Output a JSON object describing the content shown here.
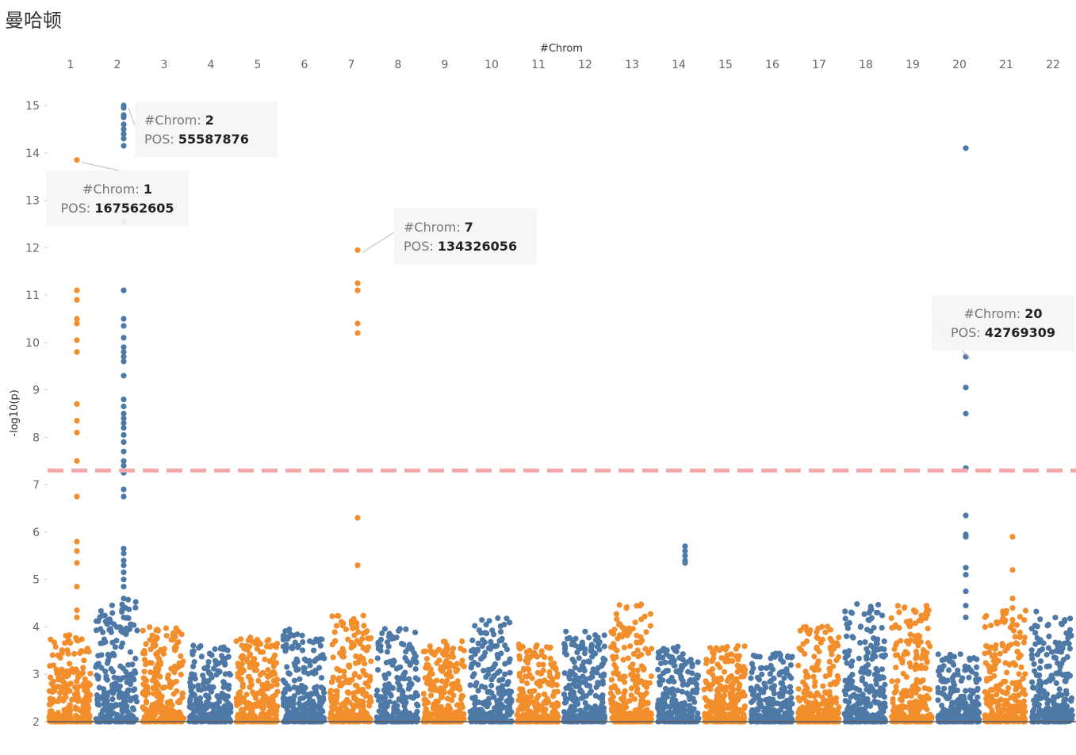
{
  "page": {
    "title": "曼哈顿"
  },
  "chart_data": {
    "type": "scatter",
    "title": "曼哈顿",
    "xlabel": "#Chrom",
    "ylabel": "-log10(p)",
    "categories": [
      "1",
      "2",
      "3",
      "4",
      "5",
      "6",
      "7",
      "8",
      "9",
      "10",
      "11",
      "12",
      "13",
      "14",
      "15",
      "16",
      "17",
      "18",
      "19",
      "20",
      "21",
      "22"
    ],
    "ylim": [
      2,
      15
    ],
    "yticks": [
      2,
      3,
      4,
      5,
      6,
      7,
      8,
      9,
      10,
      11,
      12,
      13,
      14,
      15
    ],
    "xaxis_position": "top",
    "grid": false,
    "legend": "none",
    "threshold": {
      "value": 7.3,
      "style": "dashed",
      "color": "#f4a9a8"
    },
    "colors": {
      "odd": "#f28e2b",
      "even": "#4e79a7",
      "baseline": "#555555"
    },
    "bulk_max_by_chrom": [
      3.85,
      4.6,
      4.0,
      3.65,
      3.8,
      3.95,
      4.25,
      4.0,
      3.7,
      4.25,
      3.65,
      3.95,
      4.55,
      3.6,
      3.6,
      3.45,
      4.05,
      4.5,
      4.45,
      3.45,
      4.35,
      4.35
    ],
    "peaks": [
      {
        "chrom": 1,
        "values": [
          13.85,
          11.1,
          10.9,
          10.5,
          10.4,
          10.05,
          9.8,
          8.7,
          8.35,
          8.1,
          7.5,
          6.75,
          5.8,
          5.6,
          5.35,
          4.85,
          4.35,
          4.2
        ]
      },
      {
        "chrom": 2,
        "values": [
          15.0,
          14.95,
          14.8,
          14.75,
          14.6,
          14.5,
          14.4,
          14.3,
          14.15,
          12.55,
          11.1,
          10.5,
          10.35,
          10.1,
          9.9,
          9.8,
          9.7,
          9.6,
          9.3,
          8.8,
          8.65,
          8.5,
          8.4,
          8.3,
          8.2,
          8.05,
          7.9,
          7.7,
          7.5,
          7.4,
          7.25,
          6.9,
          6.75,
          5.65,
          5.55,
          5.4,
          5.3,
          5.15,
          5.0,
          4.85,
          4.6,
          4.4,
          4.2
        ]
      },
      {
        "chrom": 7,
        "values": [
          11.95,
          11.25,
          11.1,
          10.4,
          10.2,
          6.3,
          5.3
        ]
      },
      {
        "chrom": 14,
        "values": [
          5.7,
          5.6,
          5.5,
          5.4,
          5.35
        ]
      },
      {
        "chrom": 20,
        "values": [
          14.1,
          9.7,
          9.05,
          8.5,
          7.35,
          6.35,
          5.95,
          5.9,
          5.25,
          5.1,
          4.75,
          4.45,
          4.2
        ]
      },
      {
        "chrom": 21,
        "values": [
          5.9,
          5.2,
          4.6,
          4.4,
          4.15,
          4.05
        ]
      }
    ],
    "annotations": [
      {
        "chrom_label": "#Chrom:",
        "chrom": "2",
        "pos_label": "POS:",
        "pos": "55587876",
        "point_chrom": 2,
        "point_value": 15.0
      },
      {
        "chrom_label": "#Chrom:",
        "chrom": "1",
        "pos_label": "POS:",
        "pos": "167562605",
        "point_chrom": 1,
        "point_value": 13.85
      },
      {
        "chrom_label": "#Chrom:",
        "chrom": "7",
        "pos_label": "POS:",
        "pos": "134326056",
        "point_chrom": 7,
        "point_value": 11.95
      },
      {
        "chrom_label": "#Chrom:",
        "chrom": "20",
        "pos_label": "POS:",
        "pos": "42769309",
        "point_chrom": 20,
        "point_value": 9.7
      }
    ]
  }
}
